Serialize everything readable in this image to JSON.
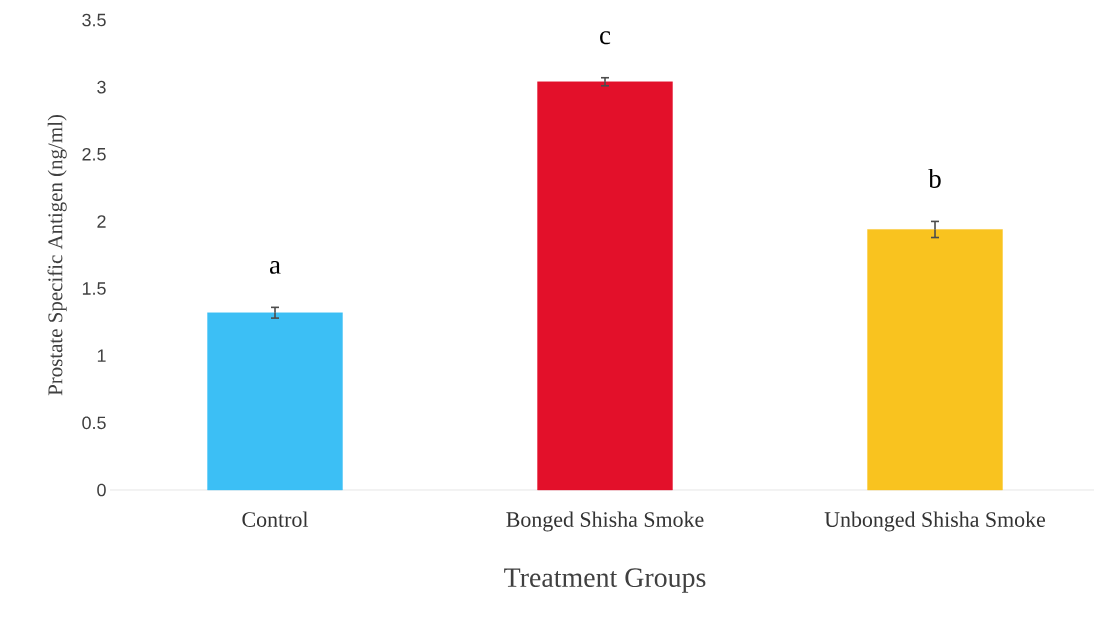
{
  "chart_data": {
    "type": "bar",
    "xlabel": "Treatment Groups",
    "ylabel": "Prostate Specific Antigen (ng/ml)",
    "categories": [
      "Control",
      "Bonged Shisha Smoke",
      "Unbonged Shisha Smoke"
    ],
    "values": [
      1.32,
      3.04,
      1.94
    ],
    "errors": [
      0.04,
      0.03,
      0.06
    ],
    "colors": [
      "#3cbff5",
      "#e3102a",
      "#f9c31f"
    ],
    "ylim": [
      0,
      3.5
    ],
    "yticks": [
      0,
      0.5,
      1,
      1.5,
      2,
      2.5,
      3,
      3.5
    ],
    "annotations": [
      "a",
      "c",
      "b"
    ]
  }
}
